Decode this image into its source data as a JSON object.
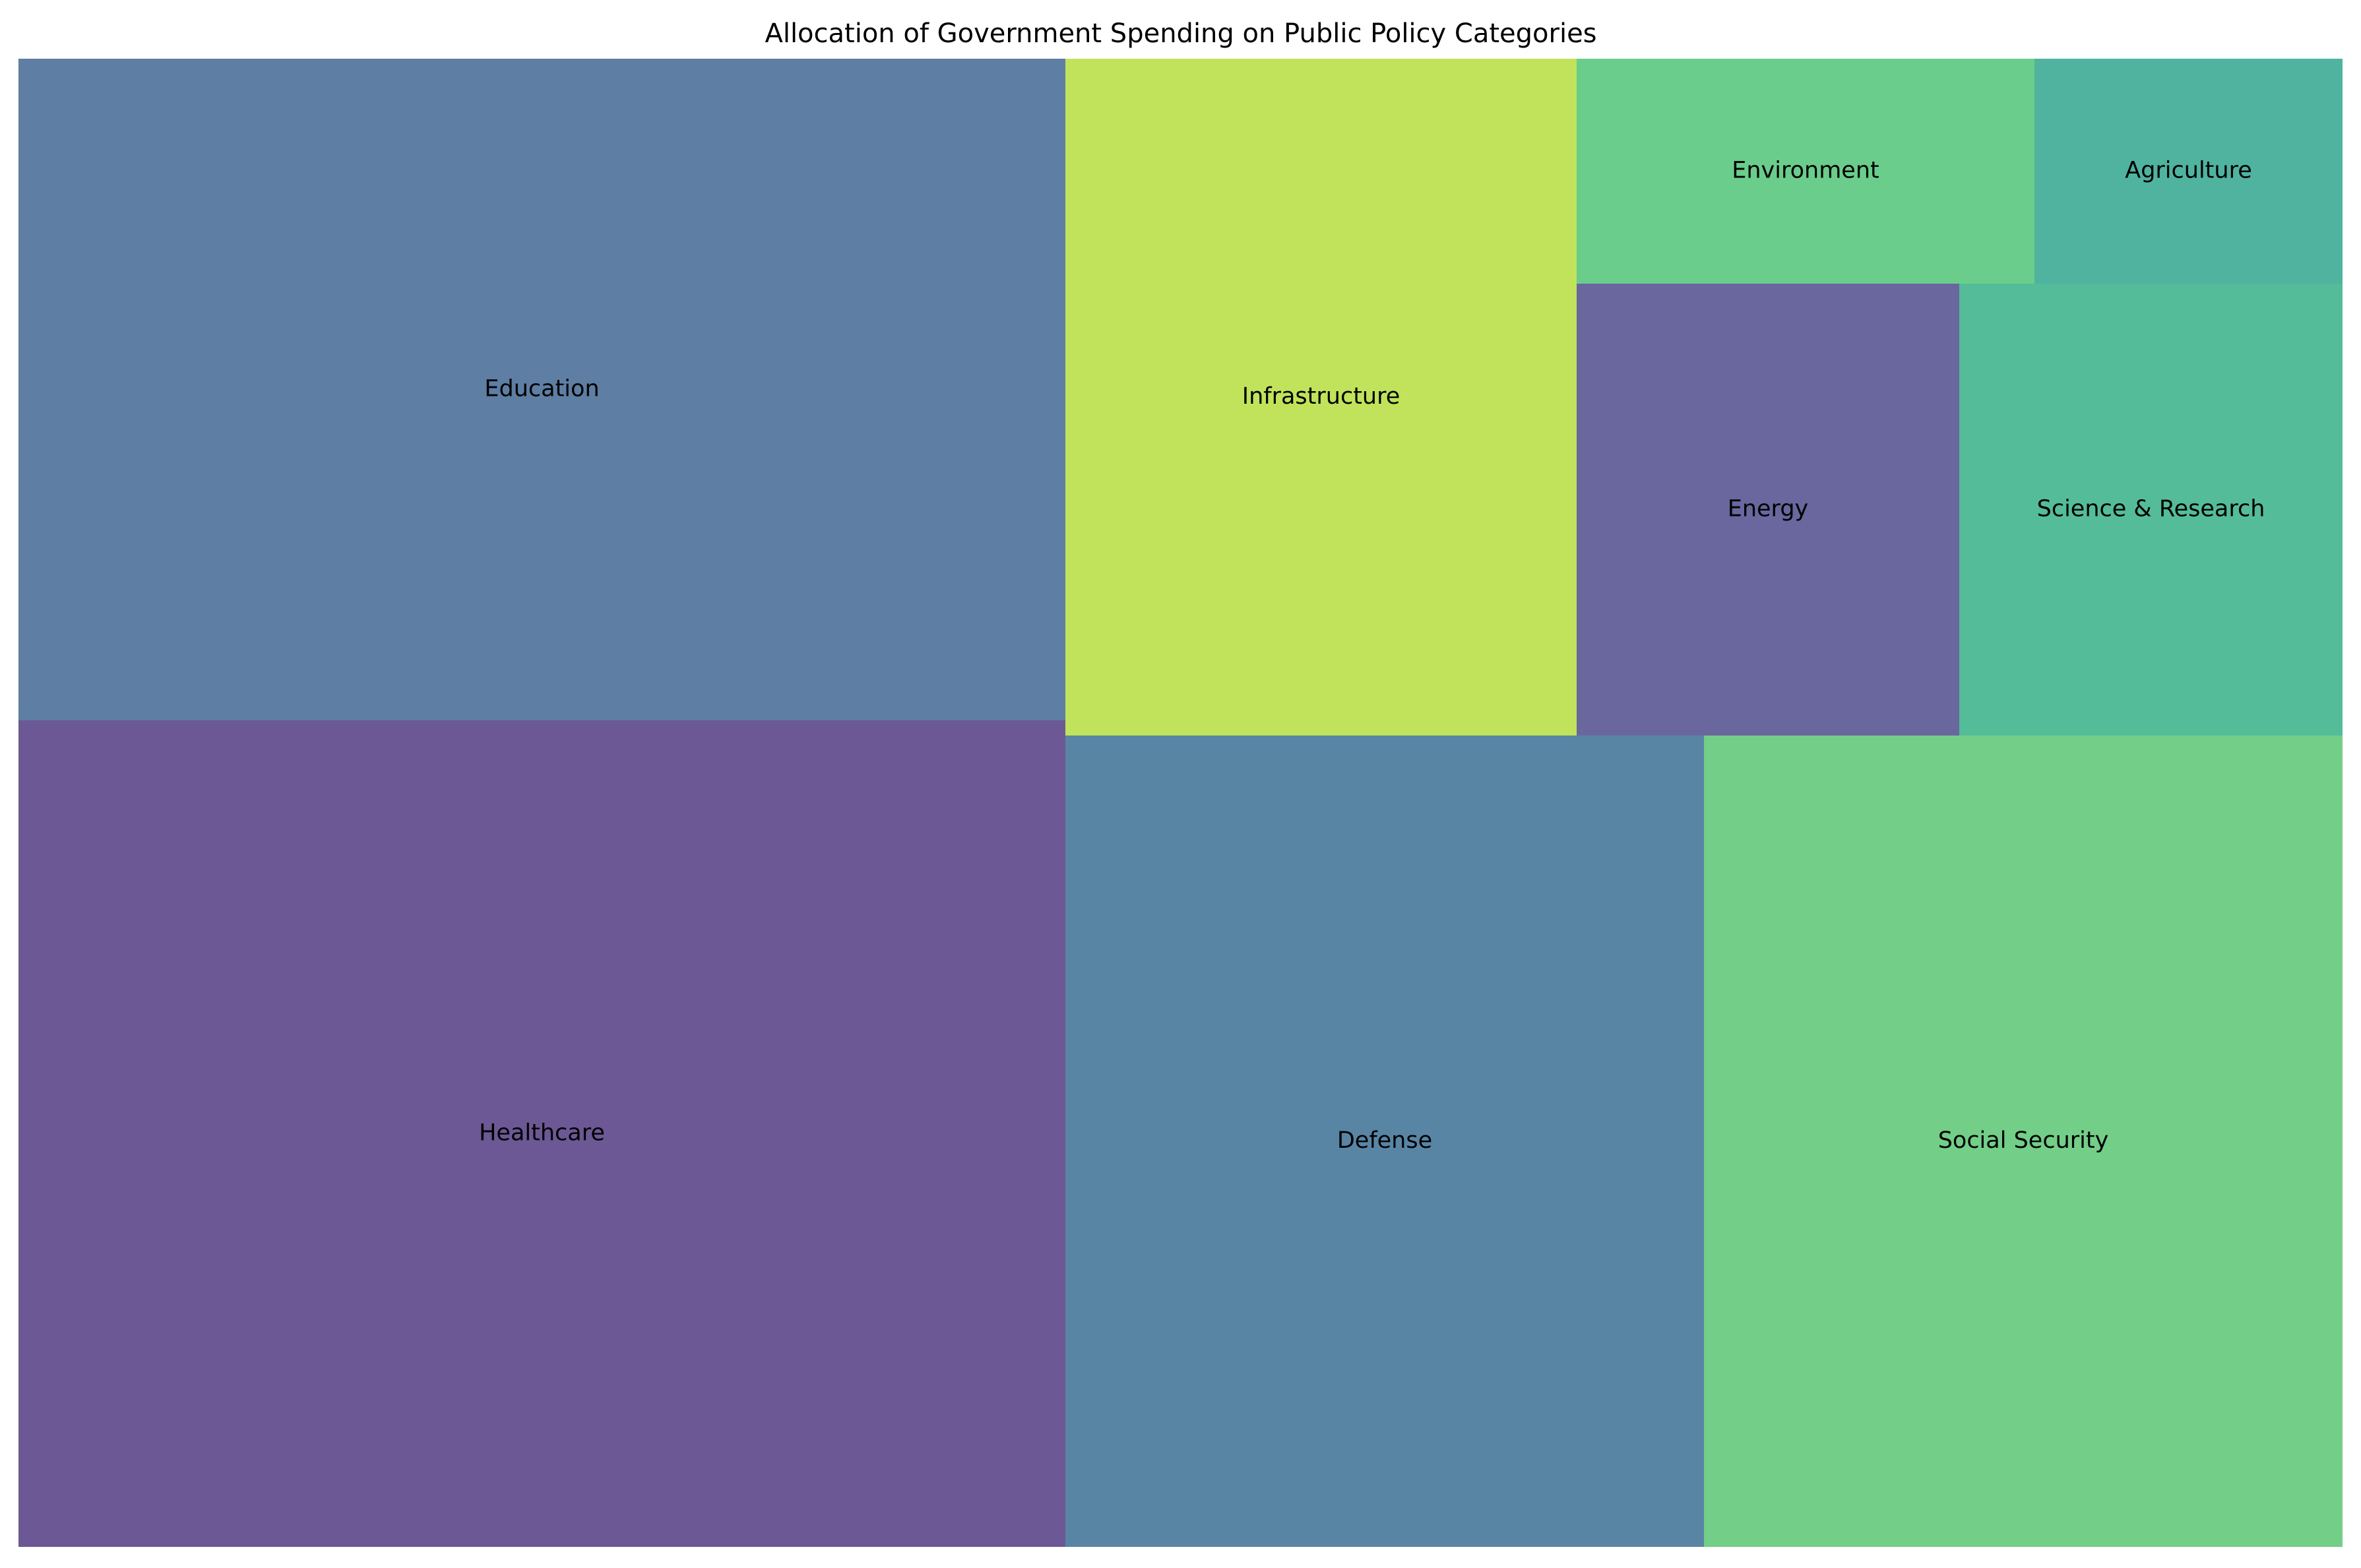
{
  "chart_data": {
    "type": "treemap",
    "title": "Allocation of Government Spending on Public Policy Categories",
    "tiles": [
      {
        "label": "Healthcare",
        "color": "#6b5894"
      },
      {
        "label": "Education",
        "color": "#5e7ea3"
      },
      {
        "label": "Defense",
        "color": "#5985a5"
      },
      {
        "label": "Social Security",
        "color": "#73ce88"
      },
      {
        "label": "Infrastructure",
        "color": "#c0e35b"
      },
      {
        "label": "Energy",
        "color": "#69679e"
      },
      {
        "label": "Science & Research",
        "color": "#54bc99"
      },
      {
        "label": "Environment",
        "color": "#6acd8b"
      },
      {
        "label": "Agriculture",
        "color": "#4fb3a0"
      }
    ]
  }
}
